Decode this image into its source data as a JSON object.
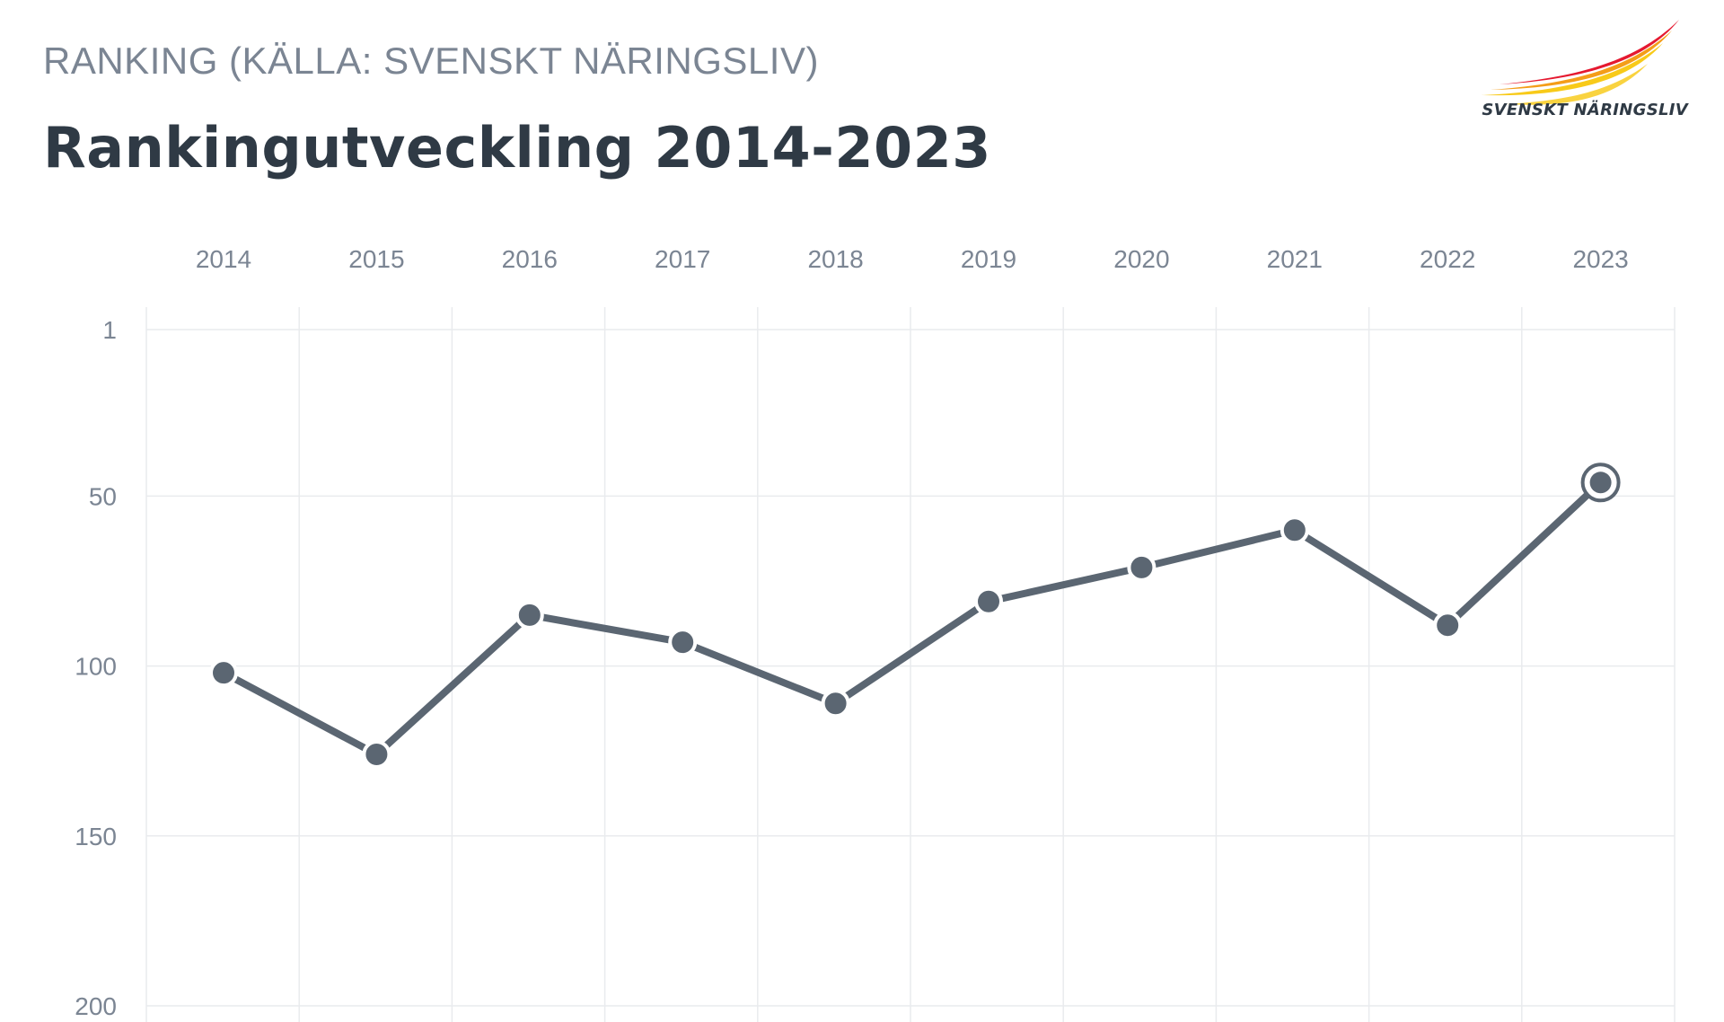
{
  "header": {
    "kicker": "RANKING (KÄLLA: SVENSKT NÄRINGSLIV)",
    "title": "Rankingutveckling 2014-2023"
  },
  "logo": {
    "text": "SVENSKT NÄRINGSLIV",
    "colors": [
      "#f7c400",
      "#f39200",
      "#e2001a"
    ]
  },
  "chart_data": {
    "type": "line",
    "title": "Rankingutveckling 2014-2023",
    "x": [
      "2014",
      "2015",
      "2016",
      "2017",
      "2018",
      "2019",
      "2020",
      "2021",
      "2022",
      "2023"
    ],
    "series": [
      {
        "values": [
          102,
          126,
          85,
          93,
          111,
          81,
          71,
          60,
          88,
          46
        ]
      }
    ],
    "y_ticks": [
      1,
      50,
      100,
      150,
      200
    ],
    "ylim": [
      1,
      200
    ],
    "y_inverted": true,
    "x_axis_position": "top",
    "grid": true,
    "highlight_last_point": true,
    "colors": {
      "line": "#5b6672",
      "grid": "#e9ebee",
      "tick_text": "#7b8593"
    }
  }
}
